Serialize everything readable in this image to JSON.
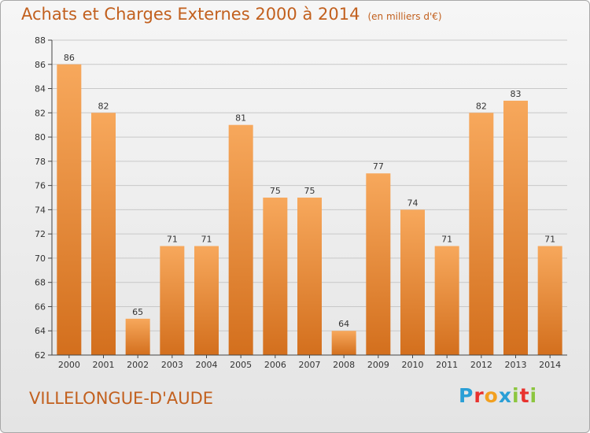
{
  "title": {
    "main": "Achats et Charges Externes 2000 à 2014",
    "unit": "(en milliers d'€)"
  },
  "location": "VILLELONGUE-D'AUDE",
  "logo": {
    "letters": [
      "P",
      "r",
      "o",
      "x",
      "i",
      "t",
      "i"
    ],
    "colors": [
      "#2a9fd6",
      "#e8322e",
      "#f2a01f",
      "#2a9fd6",
      "#8cc63f",
      "#e8322e",
      "#8cc63f"
    ]
  },
  "colors": {
    "title": "#c2601e",
    "bar_top": "#f7a85c",
    "bar_bottom": "#d36f1d",
    "grid": "#c8c8c8",
    "axis": "#444444"
  },
  "chart_data": {
    "type": "bar",
    "categories": [
      "2000",
      "2001",
      "2002",
      "2003",
      "2004",
      "2005",
      "2006",
      "2007",
      "2008",
      "2009",
      "2010",
      "2011",
      "2012",
      "2013",
      "2014"
    ],
    "values": [
      86,
      82,
      65,
      71,
      71,
      81,
      75,
      75,
      64,
      77,
      74,
      71,
      82,
      83,
      71
    ],
    "ylim": [
      62,
      88
    ],
    "yticks": [
      62,
      64,
      66,
      68,
      70,
      72,
      74,
      76,
      78,
      80,
      82,
      84,
      86,
      88
    ],
    "grid": true,
    "data_labels": true
  }
}
